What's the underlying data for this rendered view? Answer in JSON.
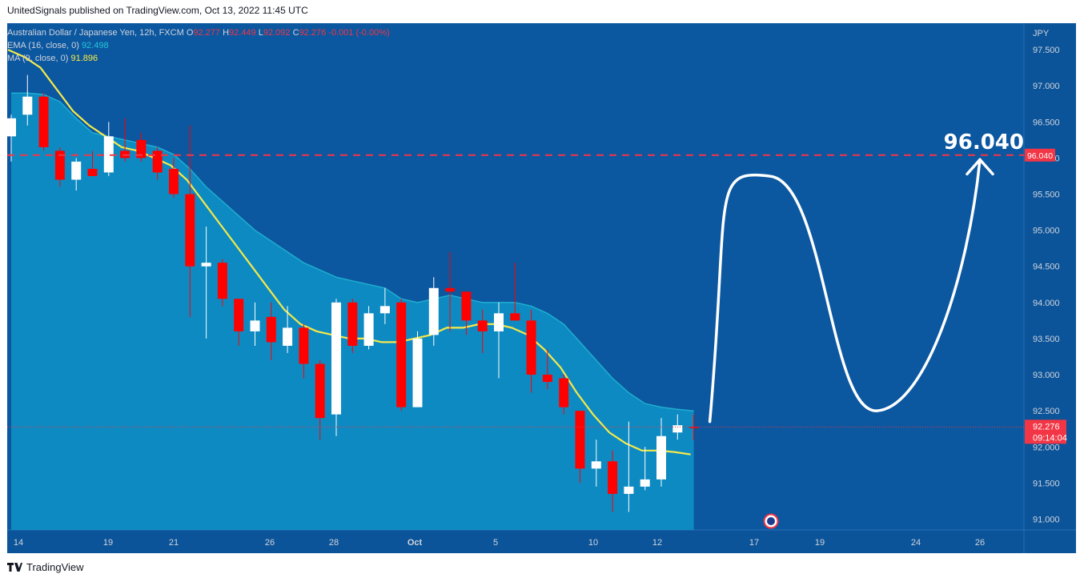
{
  "header": {
    "publisher_line": "UnitedSignals published on TradingView.com, Oct 13, 2022 11:45 UTC"
  },
  "legend": {
    "symbol": "Australian Dollar / Japanese Yen, 12h, FXCM",
    "o_label": "O",
    "o_value": "92.277",
    "h_label": "H",
    "h_value": "92.449",
    "l_label": "L",
    "l_value": "92.092",
    "c_label": "C",
    "c_value": "92.276",
    "change": "-0.001 (-0.00%)",
    "ema_label": "EMA (16, close, 0)",
    "ema_value": "92.498",
    "ma_label": "MA (9, close, 0)",
    "ma_value": "91.896"
  },
  "footer": {
    "brand": "TradingView"
  },
  "colors": {
    "background": "#0b5499",
    "pane_bg": "#0b57a0",
    "ema_fill": "#0f8dc4",
    "ema_line": "#26c6da",
    "ma_line": "#f5e94a",
    "candle_up": "#ffffff",
    "candle_down": "#ff0000",
    "target_line": "#f23645",
    "projection": "#ffffff"
  },
  "chart_data": {
    "type": "candlestick",
    "currency": "JPY",
    "ylim": [
      90.85,
      97.8
    ],
    "y_ticks": [
      "97.500",
      "97.000",
      "96.500",
      "96.000",
      "95.500",
      "95.000",
      "94.500",
      "94.000",
      "93.500",
      "93.000",
      "92.500",
      "92.000",
      "91.500",
      "91.000"
    ],
    "x_ticks": [
      "14",
      "19",
      "21",
      "26",
      "28",
      "Oct",
      "5",
      "10",
      "12",
      "17",
      "19",
      "24",
      "26"
    ],
    "target": {
      "value": 96.04,
      "label": "96.040",
      "axis_label": "96.040"
    },
    "last_price": {
      "value": 92.276,
      "label": "92.276",
      "countdown": "09:14:04"
    },
    "candles": [
      {
        "o": 96.3,
        "h": 96.6,
        "l": 95.95,
        "c": 96.55
      },
      {
        "o": 96.6,
        "h": 97.15,
        "l": 96.45,
        "c": 96.85
      },
      {
        "o": 96.85,
        "h": 96.9,
        "l": 96.1,
        "c": 96.15
      },
      {
        "o": 96.1,
        "h": 96.15,
        "l": 95.6,
        "c": 95.7
      },
      {
        "o": 95.7,
        "h": 96.0,
        "l": 95.55,
        "c": 95.95
      },
      {
        "o": 95.85,
        "h": 96.1,
        "l": 95.75,
        "c": 95.75
      },
      {
        "o": 95.8,
        "h": 96.5,
        "l": 95.75,
        "c": 96.3
      },
      {
        "o": 96.1,
        "h": 96.55,
        "l": 95.95,
        "c": 96.0
      },
      {
        "o": 96.25,
        "h": 96.35,
        "l": 95.95,
        "c": 96.0
      },
      {
        "o": 96.1,
        "h": 96.15,
        "l": 95.7,
        "c": 95.8
      },
      {
        "o": 95.85,
        "h": 96.0,
        "l": 95.45,
        "c": 95.5
      },
      {
        "o": 95.5,
        "h": 96.45,
        "l": 93.8,
        "c": 94.5
      },
      {
        "o": 94.5,
        "h": 95.05,
        "l": 93.5,
        "c": 94.55
      },
      {
        "o": 94.55,
        "h": 94.6,
        "l": 93.95,
        "c": 94.05
      },
      {
        "o": 94.05,
        "h": 94.05,
        "l": 93.4,
        "c": 93.6
      },
      {
        "o": 93.6,
        "h": 94.0,
        "l": 93.4,
        "c": 93.75
      },
      {
        "o": 93.8,
        "h": 94.0,
        "l": 93.2,
        "c": 93.45
      },
      {
        "o": 93.4,
        "h": 93.95,
        "l": 93.3,
        "c": 93.65
      },
      {
        "o": 93.65,
        "h": 93.7,
        "l": 92.95,
        "c": 93.15
      },
      {
        "o": 93.15,
        "h": 93.2,
        "l": 92.1,
        "c": 92.4
      },
      {
        "o": 92.45,
        "h": 94.05,
        "l": 92.15,
        "c": 94.0
      },
      {
        "o": 94.0,
        "h": 94.05,
        "l": 93.3,
        "c": 93.4
      },
      {
        "o": 93.4,
        "h": 93.95,
        "l": 93.35,
        "c": 93.85
      },
      {
        "o": 93.85,
        "h": 94.2,
        "l": 93.7,
        "c": 93.95
      },
      {
        "o": 94.0,
        "h": 94.05,
        "l": 92.5,
        "c": 92.55
      },
      {
        "o": 92.55,
        "h": 93.6,
        "l": 92.55,
        "c": 93.5
      },
      {
        "o": 93.55,
        "h": 94.35,
        "l": 93.4,
        "c": 94.2
      },
      {
        "o": 94.2,
        "h": 94.7,
        "l": 93.6,
        "c": 94.15
      },
      {
        "o": 94.15,
        "h": 94.15,
        "l": 93.55,
        "c": 93.75
      },
      {
        "o": 93.75,
        "h": 93.9,
        "l": 93.3,
        "c": 93.6
      },
      {
        "o": 93.6,
        "h": 94.0,
        "l": 92.95,
        "c": 93.85
      },
      {
        "o": 93.85,
        "h": 94.55,
        "l": 93.8,
        "c": 93.75
      },
      {
        "o": 93.75,
        "h": 93.9,
        "l": 92.75,
        "c": 93.0
      },
      {
        "o": 93.0,
        "h": 93.35,
        "l": 92.8,
        "c": 92.9
      },
      {
        "o": 92.95,
        "h": 93.0,
        "l": 92.45,
        "c": 92.55
      },
      {
        "o": 92.5,
        "h": 92.5,
        "l": 91.5,
        "c": 91.7
      },
      {
        "o": 91.7,
        "h": 92.1,
        "l": 91.45,
        "c": 91.8
      },
      {
        "o": 91.8,
        "h": 91.95,
        "l": 91.1,
        "c": 91.35
      },
      {
        "o": 91.35,
        "h": 92.35,
        "l": 91.1,
        "c": 91.45
      },
      {
        "o": 91.45,
        "h": 92.0,
        "l": 91.4,
        "c": 91.55
      },
      {
        "o": 91.55,
        "h": 92.4,
        "l": 91.45,
        "c": 92.15
      },
      {
        "o": 92.2,
        "h": 92.45,
        "l": 92.1,
        "c": 92.3
      },
      {
        "o": 92.277,
        "h": 92.449,
        "l": 92.092,
        "c": 92.276
      }
    ],
    "ema_16": [
      96.9,
      96.9,
      96.88,
      96.78,
      96.55,
      96.35,
      96.3,
      96.25,
      96.2,
      96.15,
      96.05,
      95.85,
      95.6,
      95.4,
      95.2,
      95.0,
      94.85,
      94.7,
      94.55,
      94.45,
      94.35,
      94.3,
      94.25,
      94.2,
      94.05,
      94.0,
      94.05,
      94.1,
      94.05,
      94.0,
      94.0,
      94.0,
      93.95,
      93.85,
      93.7,
      93.45,
      93.2,
      92.95,
      92.75,
      92.6,
      92.55,
      92.52,
      92.498
    ],
    "ma_9": [
      97.5,
      97.4,
      97.25,
      96.95,
      96.65,
      96.45,
      96.3,
      96.15,
      96.1,
      96.0,
      95.9,
      95.7,
      95.4,
      95.1,
      94.8,
      94.5,
      94.2,
      93.9,
      93.7,
      93.6,
      93.55,
      93.5,
      93.5,
      93.45,
      93.45,
      93.5,
      93.55,
      93.65,
      93.65,
      93.7,
      93.7,
      93.65,
      93.55,
      93.35,
      93.1,
      92.75,
      92.45,
      92.2,
      92.05,
      91.95,
      91.95,
      91.93,
      91.896
    ],
    "projection": {
      "points": [
        [
          92.35,
          0
        ],
        [
          95.75,
          0.22
        ],
        [
          92.5,
          0.62
        ],
        [
          96.0,
          1.0
        ]
      ],
      "note": ""
    }
  }
}
